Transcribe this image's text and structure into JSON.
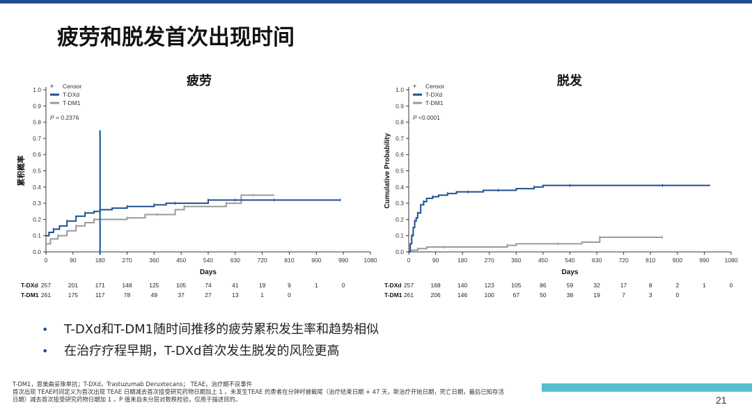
{
  "slide": {
    "title": "疲劳和脱发首次出现时间",
    "bullets": [
      "T-DXd和T-DM1随时间推移的疲劳累积发生率和趋势相似",
      "在治疗疗程早期，T-DXd首次发生脱发的风险更高"
    ],
    "footnotes": [
      "T-DM1，恩美曲妥珠单抗；T-DXd，Trastuzumab Deruxtecans； TEAE，治疗期不良事件",
      "首次出现 TEAE时间定义为首次出现 TEAE 日期减去首次接受研究药物日期加上 1 。未发生TEAE 的患者在分钟时被截尾（治疗结束日期 + 47 天，新治疗开始日期，死亡日期，最后已知存活",
      "日期）减去首次接受研究药物日期加 1 。P 值来自未分层对数秩检验，仅用于描述目的。"
    ],
    "page_number": "21",
    "accent_color": "#1e4f8e",
    "teal_color": "#57bfcc"
  },
  "chart_data": [
    {
      "type": "line",
      "title": "疲劳",
      "xlabel": "Days",
      "ylabel": "累积概率",
      "xlim": [
        0,
        1080
      ],
      "ylim": [
        0,
        1.0
      ],
      "x_ticks": [
        0,
        90,
        180,
        270,
        360,
        450,
        540,
        630,
        720,
        810,
        900,
        990,
        1080
      ],
      "y_ticks": [
        "0.0",
        "0.1",
        "0.2",
        "0.3",
        "0.4",
        "0.5",
        "0.6",
        "0.7",
        "0.8",
        "0.9",
        "1.0"
      ],
      "legend": [
        "Censor",
        "T-DXd",
        "T-DM1"
      ],
      "legend_symbol": "+",
      "p_value_label": "P",
      "p_value_text": " = 0.2376",
      "annotation_vline_x": 180,
      "series": [
        {
          "name": "T-DXd",
          "color": "#1e4f8e",
          "x": [
            0,
            10,
            25,
            45,
            70,
            100,
            130,
            160,
            180,
            220,
            270,
            320,
            360,
            400,
            430,
            480,
            540,
            600,
            630,
            700,
            760,
            850,
            980
          ],
          "y": [
            0.1,
            0.12,
            0.14,
            0.16,
            0.19,
            0.22,
            0.24,
            0.25,
            0.26,
            0.27,
            0.28,
            0.28,
            0.29,
            0.3,
            0.3,
            0.3,
            0.32,
            0.32,
            0.32,
            0.32,
            0.32,
            0.32,
            0.32
          ]
        },
        {
          "name": "T-DM1",
          "color": "#9a9a9a",
          "x": [
            0,
            15,
            40,
            70,
            100,
            130,
            160,
            180,
            270,
            330,
            370,
            430,
            460,
            520,
            600,
            650,
            690,
            760
          ],
          "y": [
            0.05,
            0.08,
            0.1,
            0.13,
            0.16,
            0.18,
            0.2,
            0.2,
            0.21,
            0.23,
            0.23,
            0.26,
            0.28,
            0.28,
            0.3,
            0.35,
            0.35,
            0.35
          ]
        }
      ],
      "risk_table": {
        "x": [
          0,
          90,
          180,
          270,
          360,
          450,
          540,
          630,
          720,
          810,
          900,
          990
        ],
        "rows": [
          {
            "label": "T-DXd",
            "values": [
              "257",
              "201",
              "171",
              "148",
              "125",
              "105",
              "74",
              "41",
              "19",
              "9",
              "1",
              "0"
            ]
          },
          {
            "label": "T-DM1",
            "values": [
              "261",
              "175",
              "117",
              "78",
              "49",
              "37",
              "27",
              "13",
              "1",
              "0"
            ]
          }
        ]
      }
    },
    {
      "type": "line",
      "title": "脱发",
      "xlabel": "Days",
      "ylabel": "Cumulative Probability",
      "xlim": [
        0,
        1080
      ],
      "ylim": [
        0,
        1.0
      ],
      "x_ticks": [
        0,
        90,
        180,
        270,
        360,
        450,
        540,
        630,
        720,
        810,
        900,
        990,
        1080
      ],
      "y_ticks": [
        "0.0",
        "0.1",
        "0.2",
        "0.3",
        "0.4",
        "0.5",
        "0.6",
        "0.7",
        "0.8",
        "0.9",
        "1.0"
      ],
      "legend": [
        "Censor",
        "T-DXd",
        "T-DM1"
      ],
      "legend_symbol": "+",
      "p_value_label": "P",
      "p_value_text": " <0.0001",
      "series": [
        {
          "name": "T-DXd",
          "color": "#1e4f8e",
          "x": [
            0,
            5,
            10,
            15,
            20,
            25,
            30,
            40,
            50,
            60,
            80,
            100,
            130,
            160,
            200,
            250,
            300,
            360,
            420,
            450,
            540,
            700,
            850,
            1010
          ],
          "y": [
            0.0,
            0.05,
            0.1,
            0.15,
            0.19,
            0.21,
            0.24,
            0.29,
            0.31,
            0.33,
            0.34,
            0.35,
            0.36,
            0.37,
            0.37,
            0.38,
            0.38,
            0.39,
            0.4,
            0.41,
            0.41,
            0.41,
            0.41,
            0.41
          ]
        },
        {
          "name": "T-DM1",
          "color": "#9a9a9a",
          "x": [
            0,
            10,
            30,
            60,
            120,
            250,
            330,
            360,
            500,
            580,
            640,
            700,
            850
          ],
          "y": [
            0.0,
            0.01,
            0.02,
            0.03,
            0.03,
            0.03,
            0.04,
            0.05,
            0.05,
            0.06,
            0.09,
            0.09,
            0.09
          ]
        }
      ],
      "risk_table": {
        "x": [
          0,
          90,
          180,
          270,
          360,
          450,
          540,
          630,
          720,
          810,
          900,
          990,
          1080
        ],
        "rows": [
          {
            "label": "T-DXd",
            "values": [
              "257",
              "168",
              "140",
              "123",
              "105",
              "86",
              "59",
              "32",
              "17",
              "8",
              "2",
              "1",
              "0"
            ]
          },
          {
            "label": "T-DM1",
            "values": [
              "261",
              "206",
              "146",
              "100",
              "67",
              "50",
              "38",
              "19",
              "7",
              "3",
              "0"
            ]
          }
        ]
      }
    }
  ]
}
